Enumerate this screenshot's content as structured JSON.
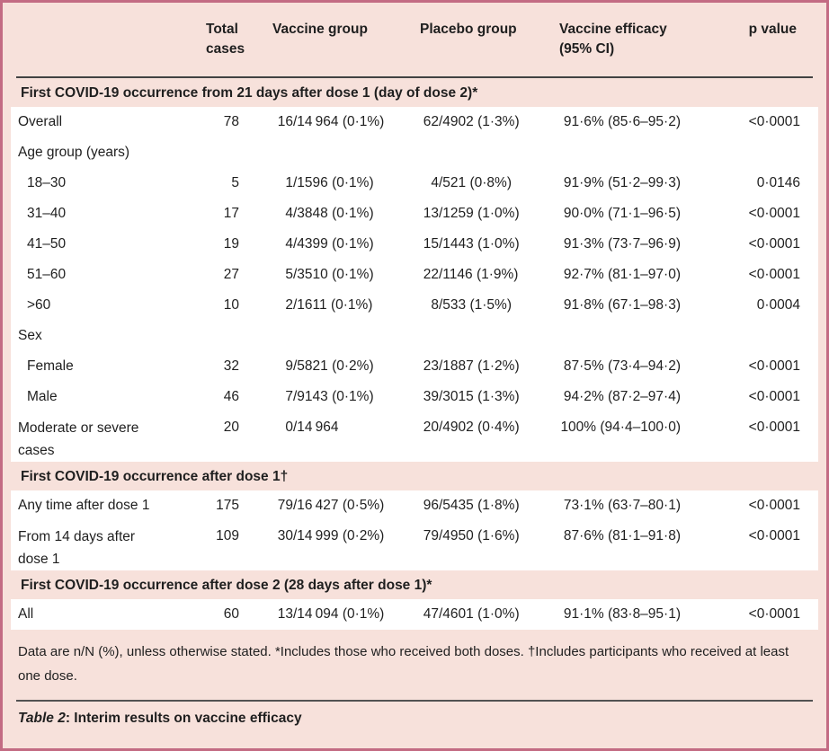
{
  "colors": {
    "frame_border": "#c36b83",
    "panel_background": "#f7e1db",
    "data_row_background": "#ffffff",
    "rule_dark": "#424242",
    "text": "#1f1f1f"
  },
  "table": {
    "header": {
      "total": "Total\ncases",
      "vaccine": "Vaccine group",
      "placebo": "Placebo group",
      "efficacy": "Vaccine efficacy\n(95% CI)",
      "pvalue": "p value"
    },
    "sections": [
      {
        "title": "First COVID-19 occurrence from 21 days after dose 1 (day of dose 2)*",
        "rows": [
          {
            "label": "Overall",
            "indent": false,
            "tall": false,
            "total": "78",
            "vaccine": "16/14 964 (0·1%)",
            "placebo": "62/4902 (1·3%)",
            "efficacy": "91·6% (85·6–95·2)",
            "pvalue": "<0·0001"
          },
          {
            "label": "Age group (years)",
            "indent": false,
            "tall": false,
            "total": "",
            "vaccine": "",
            "placebo": "",
            "efficacy": "",
            "pvalue": ""
          },
          {
            "label": "18–30",
            "indent": true,
            "tall": false,
            "total": "5",
            "vaccine": "1/1596 (0·1%)",
            "placebo": "4/521 (0·8%)",
            "efficacy": "91·9% (51·2–99·3)",
            "pvalue": "0·0146"
          },
          {
            "label": "31–40",
            "indent": true,
            "tall": false,
            "total": "17",
            "vaccine": "4/3848 (0·1%)",
            "placebo": "13/1259 (1·0%)",
            "efficacy": "90·0% (71·1–96·5)",
            "pvalue": "<0·0001"
          },
          {
            "label": "41–50",
            "indent": true,
            "tall": false,
            "total": "19",
            "vaccine": "4/4399 (0·1%)",
            "placebo": "15/1443 (1·0%)",
            "efficacy": "91·3% (73·7–96·9)",
            "pvalue": "<0·0001"
          },
          {
            "label": "51–60",
            "indent": true,
            "tall": false,
            "total": "27",
            "vaccine": "5/3510 (0·1%)",
            "placebo": "22/1146 (1·9%)",
            "efficacy": "92·7% (81·1–97·0)",
            "pvalue": "<0·0001"
          },
          {
            "label": ">60",
            "indent": true,
            "tall": false,
            "total": "10",
            "vaccine": "2/1611 (0·1%)",
            "placebo": "8/533 (1·5%)",
            "efficacy": "91·8% (67·1–98·3)",
            "pvalue": "0·0004"
          },
          {
            "label": "Sex",
            "indent": false,
            "tall": false,
            "total": "",
            "vaccine": "",
            "placebo": "",
            "efficacy": "",
            "pvalue": ""
          },
          {
            "label": "Female",
            "indent": true,
            "tall": false,
            "total": "32",
            "vaccine": "9/5821 (0·2%)",
            "placebo": "23/1887 (1·2%)",
            "efficacy": "87·5% (73·4–94·2)",
            "pvalue": "<0·0001"
          },
          {
            "label": "Male",
            "indent": true,
            "tall": false,
            "total": "46",
            "vaccine": "7/9143 (0·1%)",
            "placebo": "39/3015 (1·3%)",
            "efficacy": "94·2% (87·2–97·4)",
            "pvalue": "<0·0001"
          },
          {
            "label": "Moderate or severe\ncases",
            "indent": false,
            "tall": true,
            "total": "20",
            "vaccine": "0/14 964",
            "placebo": "20/4902 (0·4%)",
            "efficacy": "100% (94·4–100·0)",
            "pvalue": "<0·0001"
          }
        ]
      },
      {
        "title": "First COVID-19 occurrence after dose 1†",
        "rows": [
          {
            "label": "Any time after dose 1",
            "indent": false,
            "tall": false,
            "total": "175",
            "vaccine": "79/16 427 (0·5%)",
            "placebo": "96/5435 (1·8%)",
            "efficacy": "73·1% (63·7–80·1)",
            "pvalue": "<0·0001"
          },
          {
            "label": "From 14 days after\ndose 1",
            "indent": false,
            "tall": true,
            "total": "109",
            "vaccine": "30/14 999 (0·2%)",
            "placebo": "79/4950 (1·6%)",
            "efficacy": "87·6% (81·1–91·8)",
            "pvalue": "<0·0001"
          }
        ]
      },
      {
        "title": "First COVID-19 occurrence after dose 2 (28 days after dose 1)*",
        "rows": [
          {
            "label": "All",
            "indent": false,
            "tall": false,
            "total": "60",
            "vaccine": "13/14 094 (0·1%)",
            "placebo": "47/4601 (1·0%)",
            "efficacy": "91·1% (83·8–95·1)",
            "pvalue": "<0·0001"
          }
        ]
      }
    ],
    "footnote": "Data are n/N (%), unless otherwise stated. *Includes those who received both doses. †Includes participants who received at least one dose.",
    "caption_label": "Table 2",
    "caption_rest": ": Interim results on vaccine efficacy"
  }
}
